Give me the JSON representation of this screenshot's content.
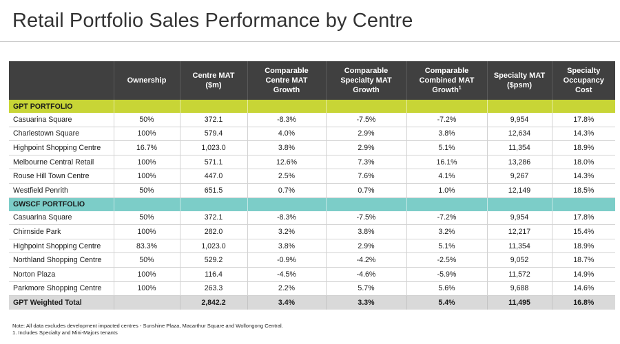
{
  "title": "Retail Portfolio Sales Performance by Centre",
  "table": {
    "headers": [
      [
        ""
      ],
      [
        "Ownership"
      ],
      [
        "Centre MAT",
        "($m)"
      ],
      [
        "Comparable",
        "Centre MAT",
        "Growth"
      ],
      [
        "Comparable",
        "Specialty MAT",
        "Growth"
      ],
      [
        "Comparable",
        "Combined MAT",
        "Growth"
      ],
      [
        "Specialty MAT",
        "($psm)"
      ],
      [
        "Specialty",
        "Occupancy",
        "Cost"
      ]
    ],
    "footnote_marker": "1",
    "sections": [
      {
        "label": "GPT PORTFOLIO",
        "rows": [
          [
            "Casuarina Square",
            "50%",
            "372.1",
            "-8.3%",
            "-7.5%",
            "-7.2%",
            "9,954",
            "17.8%"
          ],
          [
            "Charlestown Square",
            "100%",
            "579.4",
            "4.0%",
            "2.9%",
            "3.8%",
            "12,634",
            "14.3%"
          ],
          [
            "Highpoint Shopping Centre",
            "16.7%",
            "1,023.0",
            "3.8%",
            "2.9%",
            "5.1%",
            "11,354",
            "18.9%"
          ],
          [
            "Melbourne Central Retail",
            "100%",
            "571.1",
            "12.6%",
            "7.3%",
            "16.1%",
            "13,286",
            "18.0%"
          ],
          [
            "Rouse Hill Town Centre",
            "100%",
            "447.0",
            "2.5%",
            "7.6%",
            "4.1%",
            "9,267",
            "14.3%"
          ],
          [
            "Westfield Penrith",
            "50%",
            "651.5",
            "0.7%",
            "0.7%",
            "1.0%",
            "12,149",
            "18.5%"
          ]
        ]
      },
      {
        "label": "GWSCF PORTFOLIO",
        "rows": [
          [
            "Casuarina Square",
            "50%",
            "372.1",
            "-8.3%",
            "-7.5%",
            "-7.2%",
            "9,954",
            "17.8%"
          ],
          [
            "Chirnside Park",
            "100%",
            "282.0",
            "3.2%",
            "3.8%",
            "3.2%",
            "12,217",
            "15.4%"
          ],
          [
            "Highpoint Shopping Centre",
            "83.3%",
            "1,023.0",
            "3.8%",
            "2.9%",
            "5.1%",
            "11,354",
            "18.9%"
          ],
          [
            "Northland Shopping Centre",
            "50%",
            "529.2",
            "-0.9%",
            "-4.2%",
            "-2.5%",
            "9,052",
            "18.7%"
          ],
          [
            "Norton Plaza",
            "100%",
            "116.4",
            "-4.5%",
            "-4.6%",
            "-5.9%",
            "11,572",
            "14.9%"
          ],
          [
            "Parkmore Shopping Centre",
            "100%",
            "263.3",
            "2.2%",
            "5.7%",
            "5.6%",
            "9,688",
            "14.6%"
          ]
        ]
      }
    ],
    "total": [
      "GPT Weighted Total",
      "",
      "2,842.2",
      "3.4%",
      "3.3%",
      "5.4%",
      "11,495",
      "16.8%"
    ]
  },
  "notes": [
    "Note: All data excludes development impacted centres - Sunshine Plaza, Macarthur Square and Wollongong Central.",
    "1. Includes Specialty and Mini-Majors tenants"
  ],
  "colors": {
    "header_bg": "#404040",
    "gpt_section": "#c8d536",
    "gwscf_section": "#7ccdc8",
    "total_row": "#d9d9d9"
  }
}
